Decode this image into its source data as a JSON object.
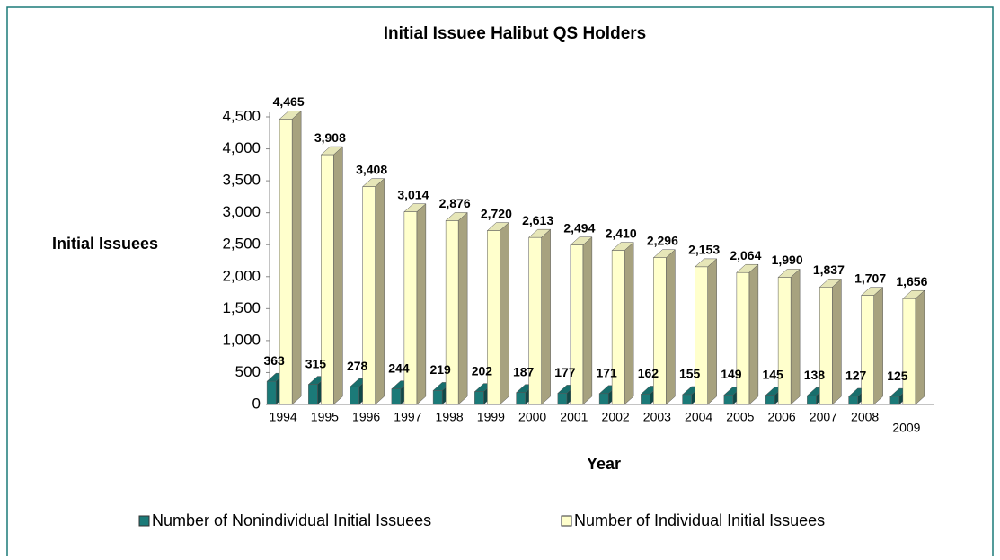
{
  "chart_data": {
    "type": "bar3d",
    "title": "Initial Issuee Halibut QS Holders",
    "x_label": "Year",
    "y_label": "Initial Issuees",
    "categories": [
      "1994",
      "1995",
      "1996",
      "1997",
      "1998",
      "1999",
      "2000",
      "2001",
      "2002",
      "2003",
      "2004",
      "2005",
      "2006",
      "2007",
      "2008",
      "2009"
    ],
    "series": [
      {
        "name": "Number of Nonindividual Initial Issuees",
        "color": "#1b7a78",
        "values": [
          363,
          315,
          278,
          244,
          219,
          202,
          187,
          177,
          171,
          162,
          155,
          149,
          145,
          138,
          127,
          125
        ]
      },
      {
        "name": "Number of Individual Initial Issuees",
        "color": "#ffffcc",
        "values": [
          4465,
          3908,
          3408,
          3014,
          2876,
          2720,
          2613,
          2494,
          2410,
          2296,
          2153,
          2064,
          1990,
          1837,
          1707,
          1656
        ],
        "value_labels": [
          "4,465",
          "3,908",
          "3,408",
          "3,014",
          "2,876",
          "2,720",
          "2,613",
          "2,494",
          "2,410",
          "2,296",
          "2,153",
          "2,064",
          "1,990",
          "1,837",
          "1,707",
          "1,656"
        ]
      }
    ],
    "ylim": [
      0,
      4500
    ],
    "yticks": [
      0,
      500,
      {
        "value": 1000,
        "label": "1,000"
      },
      {
        "value": 1500,
        "label": "1,500"
      },
      {
        "value": 2000,
        "label": "2,000"
      },
      {
        "value": 2500,
        "label": "2,500"
      },
      {
        "value": 3000,
        "label": "3,000"
      },
      {
        "value": 3500,
        "label": "3,500"
      },
      {
        "value": 4000,
        "label": "4,000"
      },
      {
        "value": 4500,
        "label": "4,500"
      }
    ],
    "legend": "bottom"
  }
}
